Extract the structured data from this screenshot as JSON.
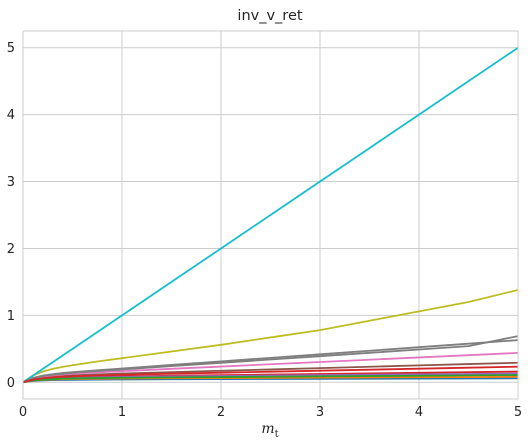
{
  "chart_data": {
    "type": "line",
    "title": "inv_v_ret",
    "xlabel_main": "m",
    "xlabel_sub": "t",
    "ylabel": "",
    "xlim": [
      0,
      5
    ],
    "ylim": [
      -0.25,
      5.25
    ],
    "xticks": [
      0,
      1,
      2,
      3,
      4,
      5
    ],
    "yticks": [
      0,
      1,
      2,
      3,
      4,
      5
    ],
    "xtick_labels": [
      "0",
      "1",
      "2",
      "3",
      "4",
      "5"
    ],
    "ytick_labels": [
      "0",
      "1",
      "2",
      "3",
      "4",
      "5"
    ],
    "grid": true,
    "x": [
      0,
      0.1,
      0.2,
      0.3,
      0.4,
      0.5,
      0.75,
      1,
      1.5,
      2,
      2.5,
      3,
      3.5,
      4,
      4.5,
      5
    ],
    "series": [
      {
        "color": "#1f77b4",
        "values": [
          0,
          0.02,
          0.028,
          0.032,
          0.035,
          0.037,
          0.04,
          0.042,
          0.045,
          0.047,
          0.049,
          0.051,
          0.053,
          0.055,
          0.057,
          0.059
        ]
      },
      {
        "color": "#ff7f0e",
        "values": [
          0,
          0.025,
          0.036,
          0.042,
          0.046,
          0.049,
          0.053,
          0.056,
          0.06,
          0.063,
          0.066,
          0.069,
          0.072,
          0.075,
          0.078,
          0.081
        ]
      },
      {
        "color": "#2ca02c",
        "values": [
          0,
          0.03,
          0.044,
          0.052,
          0.057,
          0.061,
          0.067,
          0.071,
          0.077,
          0.082,
          0.087,
          0.092,
          0.097,
          0.102,
          0.107,
          0.112
        ]
      },
      {
        "color": "#d62728",
        "values": [
          0,
          0.035,
          0.052,
          0.062,
          0.068,
          0.073,
          0.081,
          0.087,
          0.097,
          0.106,
          0.115,
          0.124,
          0.133,
          0.142,
          0.151,
          0.16
        ]
      },
      {
        "color": "#9467bd",
        "values": [
          0,
          0.033,
          0.048,
          0.057,
          0.063,
          0.067,
          0.074,
          0.079,
          0.087,
          0.094,
          0.1,
          0.106,
          0.112,
          0.118,
          0.124,
          0.13
        ]
      },
      {
        "color": "#8c564b",
        "values": [
          0,
          0.045,
          0.07,
          0.085,
          0.095,
          0.103,
          0.118,
          0.13,
          0.152,
          0.172,
          0.192,
          0.212,
          0.232,
          0.252,
          0.272,
          0.292
        ]
      },
      {
        "color": "#e377c2",
        "values": [
          0,
          0.055,
          0.085,
          0.104,
          0.117,
          0.127,
          0.148,
          0.166,
          0.201,
          0.235,
          0.269,
          0.303,
          0.337,
          0.371,
          0.405,
          0.439
        ]
      },
      {
        "color": "#7f7f7f",
        "values": [
          0,
          0.065,
          0.1,
          0.122,
          0.138,
          0.151,
          0.18,
          0.206,
          0.259,
          0.312,
          0.365,
          0.418,
          0.471,
          0.524,
          0.577,
          0.63
        ]
      },
      {
        "color": "#bcbd22",
        "values": [
          0,
          0.1,
          0.16,
          0.2,
          0.23,
          0.255,
          0.31,
          0.36,
          0.46,
          0.56,
          0.67,
          0.78,
          0.92,
          1.06,
          1.2,
          1.38
        ]
      },
      {
        "color": "#17becf",
        "values": [
          0,
          0.1,
          0.2,
          0.3,
          0.4,
          0.5,
          0.75,
          1,
          1.5,
          2,
          2.5,
          3,
          3.5,
          4,
          4.5,
          5
        ]
      },
      {
        "color": "#7f7f7f",
        "values": [
          0,
          0.06,
          0.092,
          0.113,
          0.128,
          0.14,
          0.168,
          0.192,
          0.241,
          0.29,
          0.34,
          0.39,
          0.44,
          0.49,
          0.54,
          0.69
        ]
      },
      {
        "color": "#2ca02c",
        "values": [
          0,
          0.028,
          0.04,
          0.048,
          0.053,
          0.057,
          0.063,
          0.067,
          0.073,
          0.078,
          0.083,
          0.088,
          0.093,
          0.098,
          0.103,
          0.108
        ]
      },
      {
        "color": "#d62728",
        "values": [
          0,
          0.04,
          0.06,
          0.073,
          0.082,
          0.089,
          0.101,
          0.111,
          0.128,
          0.143,
          0.158,
          0.173,
          0.188,
          0.203,
          0.218,
          0.233
        ]
      }
    ]
  }
}
